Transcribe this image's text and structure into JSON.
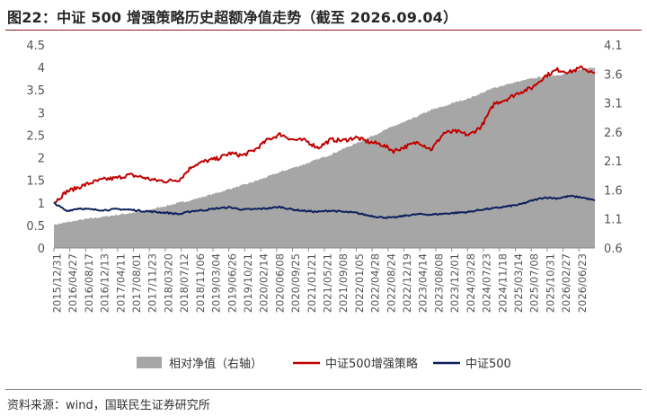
{
  "title": "图22：中证 500 增强策略历史超额净值走势（截至 2026.09.04）",
  "source": "资料来源：wind，国联民生证券研究所",
  "colors": {
    "area": "#a6a6a6",
    "strategy": "#c00000",
    "index": "#0d1f5c",
    "axis": "#8c8c8c"
  },
  "chart_data": {
    "type": "line",
    "x_ticks": [
      "2015/12/31",
      "2016/04/27",
      "2016/08/17",
      "2016/12/13",
      "2017/04/11",
      "2017/08/01",
      "2017/11/23",
      "2018/03/20",
      "2018/07/12",
      "2018/11/06",
      "2019/03/04",
      "2019/06/26",
      "2019/10/21",
      "2020/02/14",
      "2020/06/08",
      "2020/09/25",
      "2021/01/21",
      "2021/05/21",
      "2021/09/08",
      "2022/01/05",
      "2022/04/28",
      "2022/08/24",
      "2022/12/19",
      "2023/04/14",
      "2023/08/08",
      "2023/12/01",
      "2024/03/28",
      "2024/07/23",
      "2024/11/18",
      "2025/03/14",
      "2025/07/08",
      "2025/10/31",
      "2026/02/27",
      "2026/06/23"
    ],
    "y_left": {
      "min": 0,
      "max": 4.5,
      "step": 0.5,
      "ticks": [
        "0",
        "0.5",
        "1",
        "1.5",
        "2",
        "2.5",
        "3",
        "3.5",
        "4",
        "4.5"
      ]
    },
    "y_right": {
      "min": 0.6,
      "max": 4.1,
      "step": 0.5,
      "ticks": [
        "0.6",
        "1.1",
        "1.6",
        "2.1",
        "2.6",
        "3.1",
        "3.6",
        "4.1"
      ]
    },
    "legend_position": "bottom",
    "series": [
      {
        "name": "相对净值（右轴）",
        "type": "area",
        "axis": "right",
        "values": [
          1.0,
          1.04,
          1.08,
          1.11,
          1.14,
          1.17,
          1.2,
          1.23,
          1.28,
          1.33,
          1.38,
          1.43,
          1.49,
          1.55,
          1.62,
          1.68,
          1.75,
          1.83,
          1.91,
          1.98,
          2.05,
          2.13,
          2.21,
          2.31,
          2.4,
          2.5,
          2.6,
          2.7,
          2.78,
          2.88,
          2.98,
          3.04,
          3.12,
          3.18,
          3.27,
          3.36,
          3.42,
          3.47,
          3.52,
          3.56,
          3.58,
          3.62,
          3.68,
          3.72
        ]
      },
      {
        "name": "中证500增强策略",
        "type": "line",
        "axis": "left",
        "values": [
          1.0,
          1.25,
          1.35,
          1.45,
          1.52,
          1.55,
          1.62,
          1.57,
          1.5,
          1.48,
          1.52,
          1.82,
          1.92,
          1.98,
          2.1,
          2.05,
          2.18,
          2.4,
          2.52,
          2.4,
          2.38,
          2.22,
          2.4,
          2.38,
          2.45,
          2.35,
          2.3,
          2.15,
          2.25,
          2.35,
          2.18,
          2.55,
          2.58,
          2.5,
          2.7,
          3.2,
          3.3,
          3.45,
          3.55,
          3.8,
          3.95,
          3.9,
          4.0,
          3.85
        ]
      },
      {
        "name": "中证500",
        "type": "line",
        "axis": "left",
        "values": [
          1.0,
          0.82,
          0.88,
          0.85,
          0.84,
          0.86,
          0.85,
          0.82,
          0.8,
          0.78,
          0.75,
          0.82,
          0.84,
          0.88,
          0.9,
          0.85,
          0.86,
          0.88,
          0.91,
          0.85,
          0.82,
          0.8,
          0.83,
          0.8,
          0.78,
          0.72,
          0.68,
          0.67,
          0.72,
          0.75,
          0.74,
          0.76,
          0.78,
          0.8,
          0.85,
          0.88,
          0.92,
          0.96,
          1.05,
          1.12,
          1.1,
          1.15,
          1.12,
          1.05
        ]
      }
    ]
  }
}
